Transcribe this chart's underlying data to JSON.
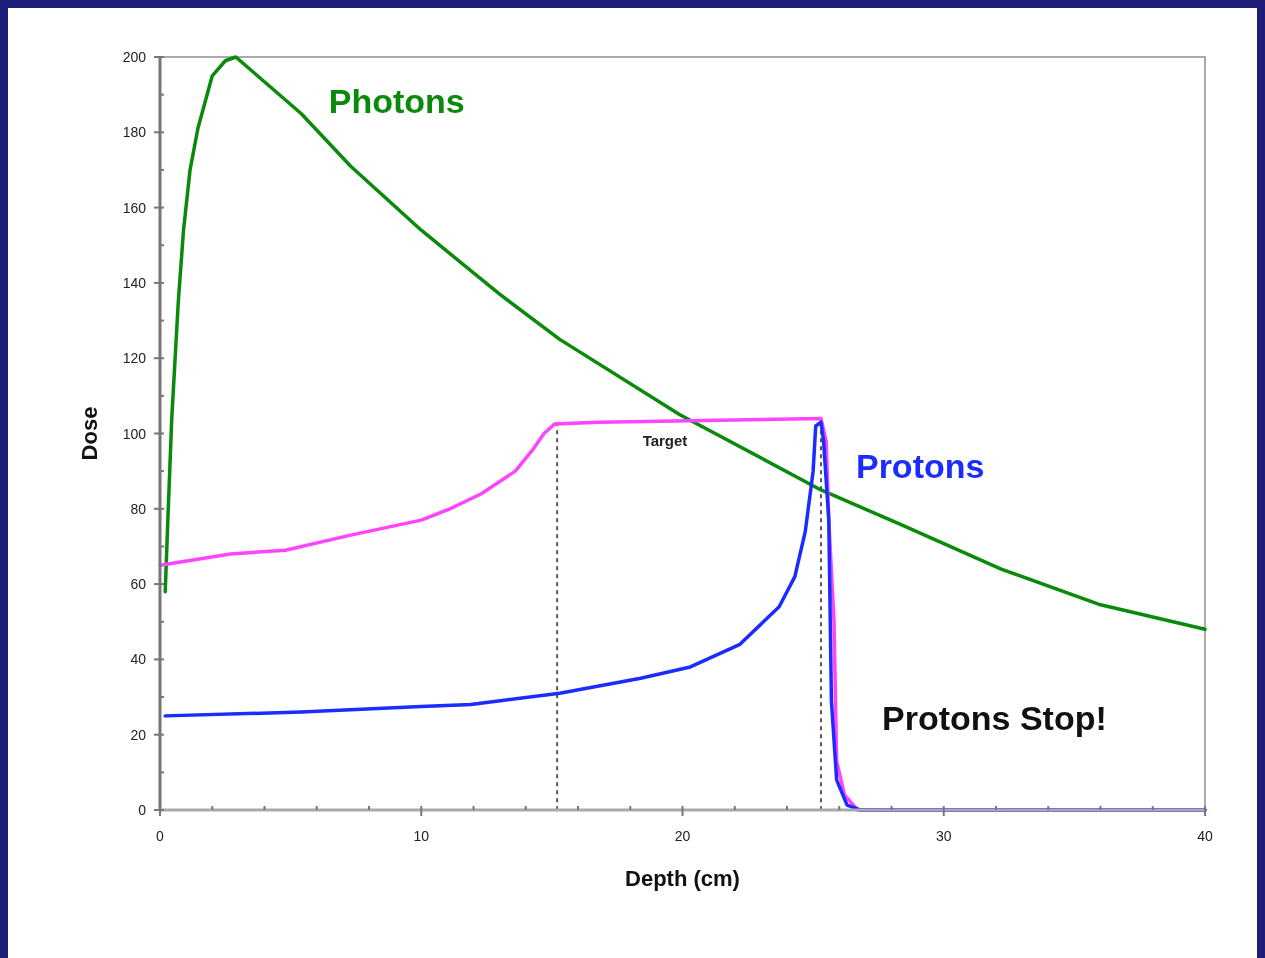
{
  "chart_data": {
    "type": "line",
    "xlabel": "Depth (cm)",
    "ylabel": "Dose",
    "xlim": [
      0,
      40
    ],
    "ylim": [
      0,
      200
    ],
    "xticks": [
      0,
      {
        "value": 2,
        "label": null
      },
      {
        "value": 4,
        "label": null
      },
      {
        "value": 6,
        "label": null
      },
      {
        "value": 8,
        "label": null
      },
      10,
      {
        "value": 12,
        "label": null
      },
      {
        "value": 14,
        "label": null
      },
      {
        "value": 16,
        "label": null
      },
      {
        "value": 18,
        "label": null
      },
      20,
      {
        "value": 22,
        "label": null
      },
      {
        "value": 24,
        "label": null
      },
      {
        "value": 26,
        "label": null
      },
      {
        "value": 28,
        "label": null
      },
      30,
      {
        "value": 32,
        "label": null
      },
      {
        "value": 34,
        "label": null
      },
      {
        "value": 36,
        "label": null
      },
      {
        "value": 38,
        "label": null
      },
      40
    ],
    "yticks": [
      0,
      {
        "value": 10,
        "label": null
      },
      20,
      {
        "value": 30,
        "label": null
      },
      40,
      {
        "value": 50,
        "label": null
      },
      60,
      {
        "value": 70,
        "label": null
      },
      80,
      {
        "value": 90,
        "label": null
      },
      100,
      {
        "value": 110,
        "label": null
      },
      120,
      {
        "value": 130,
        "label": null
      },
      140,
      {
        "value": 150,
        "label": null
      },
      160,
      {
        "value": 170,
        "label": null
      },
      180,
      {
        "value": 190,
        "label": null
      },
      200
    ],
    "grid": false,
    "legend": false,
    "marker": "none",
    "line_style": "solid",
    "series": [
      {
        "name": "Photons",
        "color": "#0a8a0a",
        "x": [
          0.2,
          0.3,
          0.45,
          0.7,
          0.9,
          1.15,
          1.45,
          2,
          2.5,
          2.9,
          3.4,
          5.4,
          7.3,
          10,
          13,
          15.3,
          19.9,
          25.3,
          28.3,
          32.2,
          36,
          40
        ],
        "values": [
          58,
          77,
          104,
          135,
          154,
          170,
          181,
          195,
          199,
          200,
          197,
          185,
          171,
          154,
          137,
          125,
          105,
          85,
          76,
          64,
          54.5,
          48
        ]
      },
      {
        "color": "#ff44ff",
        "x": [
          0,
          2.7,
          4.8,
          7.3,
          10,
          11.1,
          12.3,
          13.6,
          14.3,
          14.7,
          15.1,
          16.8,
          25.3,
          25.5,
          25.6,
          25.8,
          25.9,
          26.2,
          26.7,
          40
        ],
        "values": [
          65,
          68,
          69,
          73,
          77,
          80,
          84,
          90,
          96,
          100,
          102.5,
          103,
          104,
          98,
          77,
          50,
          13,
          4,
          0,
          0
        ]
      },
      {
        "name": "Protons",
        "color": "#1a2cff",
        "x": [
          0.2,
          5.4,
          10,
          11.9,
          15.3,
          18.4,
          20.3,
          22.2,
          23.7,
          24.3,
          24.7,
          25,
          25.1,
          25.3,
          25.4,
          25.6,
          25.7,
          25.9,
          26.3,
          26.8,
          40
        ],
        "values": [
          25,
          26,
          27.5,
          28,
          31,
          35,
          38,
          44,
          54,
          62,
          74,
          90,
          102,
          103,
          98,
          77,
          29,
          8,
          1.3,
          0,
          0
        ]
      }
    ],
    "ref_lines": [
      {
        "axis": "x",
        "value": 15.2,
        "color": "#555555",
        "line_style": "dashed"
      },
      {
        "axis": "x",
        "value": 25.3,
        "color": "#555555",
        "line_style": "dashed"
      }
    ],
    "annotations": [
      "Target",
      "Protons Stop!"
    ]
  }
}
